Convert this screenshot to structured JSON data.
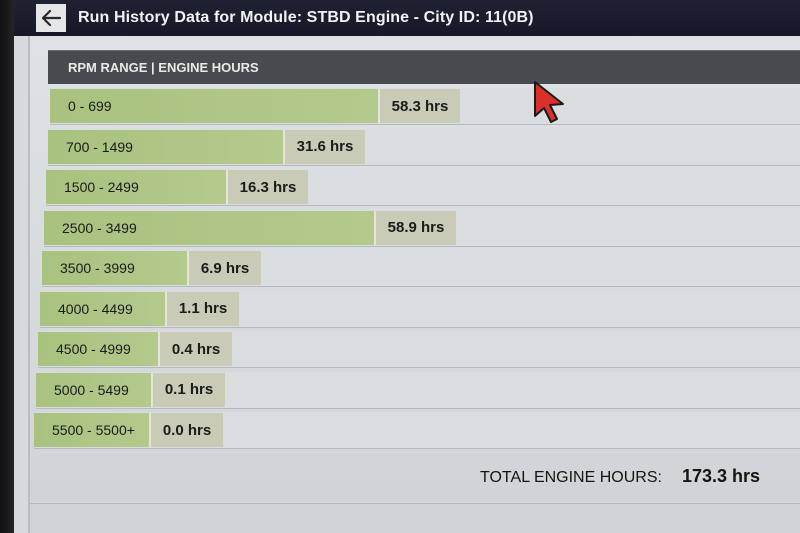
{
  "header": {
    "back_icon": "arrow-left-icon",
    "title": "Run History Data for Module: STBD Engine - City ID: 11(0B)"
  },
  "table": {
    "header_label": "RPM RANGE | ENGINE HOURS",
    "rows": [
      {
        "range": "0 - 699",
        "hours": "58.3 hrs",
        "value": 58.3
      },
      {
        "range": "700 - 1499",
        "hours": "31.6 hrs",
        "value": 31.6
      },
      {
        "range": "1500 - 2499",
        "hours": "16.3 hrs",
        "value": 16.3
      },
      {
        "range": "2500 - 3499",
        "hours": "58.9 hrs",
        "value": 58.9
      },
      {
        "range": "3500 - 3999",
        "hours": "6.9 hrs",
        "value": 6.9
      },
      {
        "range": "4000 - 4499",
        "hours": "1.1 hrs",
        "value": 1.1
      },
      {
        "range": "4500 - 4999",
        "hours": "0.4 hrs",
        "value": 0.4
      },
      {
        "range": "5000 - 5499",
        "hours": "0.1 hrs",
        "value": 0.1
      },
      {
        "range": "5500 - 5500+",
        "hours": "0.0 hrs",
        "value": 0.0
      }
    ]
  },
  "summary": {
    "total_label": "TOTAL ENGINE HOURS:",
    "total_value": "173.3 hrs"
  },
  "colors": {
    "bar_green": "#aec585",
    "hours_cell": "#c9cbb7",
    "header_bg": "#474a4f",
    "titlebar_bg": "#1a1e2d",
    "cursor_red": "#d9302a"
  }
}
